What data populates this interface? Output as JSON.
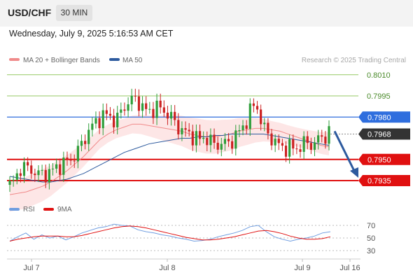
{
  "header": {
    "symbol": "USD/CHF",
    "timeframe": "30 MIN",
    "datetime": "Wednesday, July 9, 2025 5:16:53 AM CET"
  },
  "credit": "Research © 2025 Trading Central",
  "colors": {
    "candle_up": "#2e9e3a",
    "candle_down": "#cc2222",
    "ma20": "#f08a8a",
    "bollinger_fill": "#fde3e3",
    "ma50": "#2d5a9e",
    "resistance_green": "#96c864",
    "pivot_blue": "#2f6ede",
    "support_red": "#e01010",
    "last_price": "#333333",
    "rsi": "#6f9de0",
    "rsi_ma": "#e01010"
  },
  "chart_data": [
    {
      "type": "candlestick",
      "title": "USD/CHF",
      "series": [
        {
          "name": "MA 20 + Bollinger Bands",
          "values": [
            0.7925,
            0.7926,
            0.7927,
            0.7929,
            0.7931,
            0.7934,
            0.7938,
            0.7942,
            0.7947,
            0.7952,
            0.7958,
            0.7964,
            0.7968,
            0.7971,
            0.7973,
            0.7975,
            0.7975,
            0.7974,
            0.7973,
            0.7972,
            0.7971,
            0.797,
            0.7968,
            0.7967,
            0.7966,
            0.7966,
            0.7967,
            0.7968,
            0.797,
            0.7971,
            0.7972,
            0.7972,
            0.7971,
            0.797,
            0.7968,
            0.7966,
            0.7964,
            0.7962,
            0.796,
            0.7959
          ]
        },
        {
          "name": "MA 50",
          "values": [
            0.7938,
            0.7937,
            0.7936,
            0.7935,
            0.7934,
            0.7934,
            0.7935,
            0.7936,
            0.7938,
            0.794,
            0.7943,
            0.7946,
            0.7949,
            0.7952,
            0.7955,
            0.7957,
            0.7959,
            0.7961,
            0.7962,
            0.7963,
            0.7964,
            0.7965,
            0.7965,
            0.7966,
            0.7966,
            0.7967,
            0.7967,
            0.7968,
            0.7968,
            0.7968,
            0.7968,
            0.7968,
            0.7967,
            0.7966,
            0.7965,
            0.7964,
            0.7963,
            0.7962,
            0.7961,
            0.796
          ]
        }
      ],
      "levels": [
        {
          "label": "0.8010",
          "value": 0.801,
          "kind": "resistance"
        },
        {
          "label": "0.7995",
          "value": 0.7995,
          "kind": "resistance"
        },
        {
          "label": "0.7980",
          "value": 0.798,
          "kind": "pivot"
        },
        {
          "label": "0.7968",
          "value": 0.7968,
          "kind": "last"
        },
        {
          "label": "0.7950",
          "value": 0.795,
          "kind": "support"
        },
        {
          "label": "0.7935",
          "value": 0.7935,
          "kind": "support"
        }
      ],
      "forecast": {
        "direction": "down",
        "from": 0.797,
        "to": 0.7935
      },
      "x_ticks": [
        "Jul 7",
        "Jul 8",
        "Jul 9",
        "Jul 16"
      ],
      "ylim": [
        0.7926,
        0.8018
      ],
      "grid": false,
      "legend_position": "top-left"
    },
    {
      "type": "line",
      "title": "RSI",
      "series": [
        {
          "name": "RSI",
          "values": [
            45,
            52,
            58,
            48,
            55,
            50,
            53,
            47,
            52,
            58,
            62,
            66,
            68,
            72,
            70,
            69,
            63,
            60,
            58,
            55,
            53,
            50,
            48,
            45,
            46,
            48,
            52,
            55,
            58,
            62,
            68,
            70,
            60,
            52,
            48,
            45,
            48,
            50,
            53,
            58,
            60
          ]
        },
        {
          "name": "9MA",
          "values": [
            45,
            48,
            50,
            52,
            53,
            53,
            53,
            52,
            52,
            54,
            57,
            60,
            63,
            66,
            68,
            69,
            68,
            66,
            63,
            60,
            57,
            54,
            51,
            49,
            47,
            47,
            48,
            50,
            52,
            55,
            58,
            61,
            62,
            60,
            57,
            53,
            50,
            48,
            48,
            49,
            52
          ]
        }
      ],
      "y_ticks": [
        "70",
        "50",
        "30"
      ],
      "ylim": [
        20,
        80
      ],
      "legend_position": "top-left"
    }
  ]
}
